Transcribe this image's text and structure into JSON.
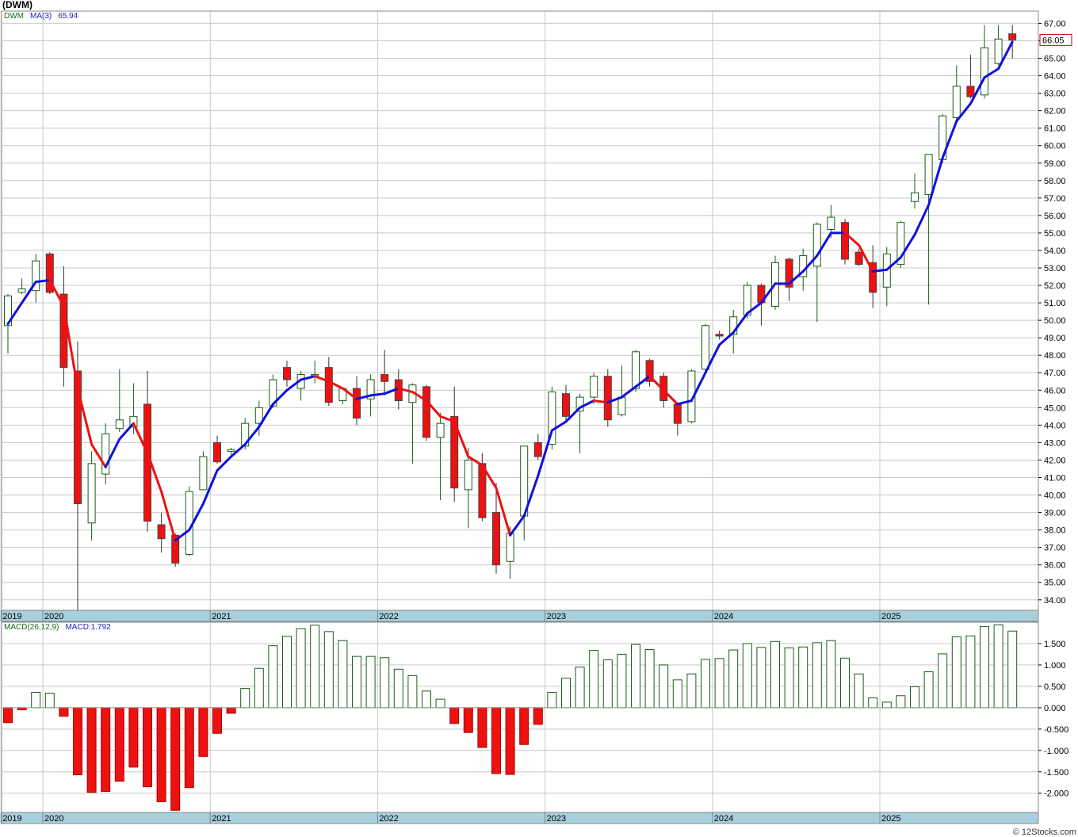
{
  "title": "(DWM)",
  "price_legend": {
    "symbol": "DWM",
    "indicator": "MA(3)",
    "value": "65.94"
  },
  "macd_legend": {
    "indicator": "MACD(26,12,9)",
    "value": "MACD:1.792"
  },
  "last_price_label": "66.05",
  "credit": "© 12Stocks.com",
  "colors": {
    "up_candle_fill": "#ffffff",
    "up_candle_stroke": "#1a5c1a",
    "down_candle": "#ee1111",
    "ma_rising": "#1010dd",
    "ma_falling": "#ee1111",
    "axis_band": "#a8d0dc",
    "grid": "#c8c8c8",
    "background": "#ffffff"
  },
  "chart_data": [
    {
      "type": "candlestick",
      "title": "(DWM)",
      "series_name": "DWM",
      "overlay": "MA(3)",
      "timeframe": "monthly",
      "ylim": [
        33.4,
        67.7
      ],
      "y_ticks": [
        34,
        35,
        36,
        37,
        38,
        39,
        40,
        41,
        42,
        43,
        44,
        45,
        46,
        47,
        48,
        49,
        50,
        51,
        52,
        53,
        54,
        55,
        56,
        57,
        58,
        59,
        60,
        61,
        62,
        63,
        64,
        65,
        66,
        67
      ],
      "x_labels": [
        "2019",
        "2020",
        "2021",
        "2022",
        "2023",
        "2024",
        "2025"
      ],
      "grid": true,
      "candles": [
        {
          "o": 49.7,
          "h": 51.5,
          "l": 48.1,
          "c": 51.4
        },
        {
          "o": 51.6,
          "h": 52.4,
          "l": 51.5,
          "c": 51.8
        },
        {
          "o": 51.7,
          "h": 53.8,
          "l": 51.0,
          "c": 53.4
        },
        {
          "o": 53.8,
          "h": 53.9,
          "l": 51.5,
          "c": 51.6
        },
        {
          "o": 51.5,
          "h": 53.1,
          "l": 46.2,
          "c": 47.3
        },
        {
          "o": 47.1,
          "h": 48.8,
          "l": 33.4,
          "c": 39.5
        },
        {
          "o": 38.4,
          "h": 42.5,
          "l": 37.4,
          "c": 41.8
        },
        {
          "o": 41.2,
          "h": 44.1,
          "l": 40.6,
          "c": 43.5
        },
        {
          "o": 43.8,
          "h": 47.2,
          "l": 43.6,
          "c": 44.3
        },
        {
          "o": 43.9,
          "h": 46.4,
          "l": 43.5,
          "c": 44.5
        },
        {
          "o": 45.2,
          "h": 47.1,
          "l": 37.9,
          "c": 38.5
        },
        {
          "o": 38.3,
          "h": 39.0,
          "l": 36.7,
          "c": 37.5
        },
        {
          "o": 37.7,
          "h": 37.8,
          "l": 35.9,
          "c": 36.1
        },
        {
          "o": 36.6,
          "h": 40.5,
          "l": 36.5,
          "c": 40.2
        },
        {
          "o": 40.3,
          "h": 42.5,
          "l": 40.3,
          "c": 42.2
        },
        {
          "o": 43.0,
          "h": 43.4,
          "l": 41.8,
          "c": 41.9
        },
        {
          "o": 42.5,
          "h": 42.7,
          "l": 42.3,
          "c": 42.6
        },
        {
          "o": 42.8,
          "h": 44.4,
          "l": 42.6,
          "c": 44.1
        },
        {
          "o": 44.1,
          "h": 45.4,
          "l": 43.4,
          "c": 45.0
        },
        {
          "o": 45.1,
          "h": 46.9,
          "l": 45.0,
          "c": 46.6
        },
        {
          "o": 47.3,
          "h": 47.7,
          "l": 46.2,
          "c": 46.6
        },
        {
          "o": 46.1,
          "h": 47.1,
          "l": 45.4,
          "c": 46.9
        },
        {
          "o": 46.9,
          "h": 47.7,
          "l": 46.4,
          "c": 46.9
        },
        {
          "o": 47.3,
          "h": 47.9,
          "l": 45.1,
          "c": 45.3
        },
        {
          "o": 45.4,
          "h": 46.1,
          "l": 45.2,
          "c": 46.1
        },
        {
          "o": 46.1,
          "h": 46.8,
          "l": 44.0,
          "c": 44.4
        },
        {
          "o": 45.5,
          "h": 46.9,
          "l": 44.5,
          "c": 46.6
        },
        {
          "o": 46.9,
          "h": 48.3,
          "l": 45.7,
          "c": 46.5
        },
        {
          "o": 46.6,
          "h": 47.2,
          "l": 44.9,
          "c": 45.4
        },
        {
          "o": 45.3,
          "h": 46.4,
          "l": 41.8,
          "c": 46.3
        },
        {
          "o": 46.2,
          "h": 46.3,
          "l": 43.1,
          "c": 43.3
        },
        {
          "o": 43.3,
          "h": 44.7,
          "l": 39.7,
          "c": 44.1
        },
        {
          "o": 44.5,
          "h": 46.2,
          "l": 39.6,
          "c": 40.4
        },
        {
          "o": 40.3,
          "h": 42.7,
          "l": 38.1,
          "c": 42.0
        },
        {
          "o": 41.8,
          "h": 42.4,
          "l": 38.5,
          "c": 38.7
        },
        {
          "o": 39.0,
          "h": 40.7,
          "l": 35.5,
          "c": 36.0
        },
        {
          "o": 36.2,
          "h": 38.2,
          "l": 35.2,
          "c": 37.8
        },
        {
          "o": 38.8,
          "h": 42.8,
          "l": 37.4,
          "c": 42.8
        },
        {
          "o": 43.0,
          "h": 43.5,
          "l": 42.0,
          "c": 42.2
        },
        {
          "o": 42.9,
          "h": 46.2,
          "l": 42.6,
          "c": 45.9
        },
        {
          "o": 45.8,
          "h": 46.3,
          "l": 44.2,
          "c": 44.5
        },
        {
          "o": 44.8,
          "h": 45.8,
          "l": 42.4,
          "c": 45.6
        },
        {
          "o": 45.6,
          "h": 47.0,
          "l": 45.2,
          "c": 46.8
        },
        {
          "o": 46.8,
          "h": 47.2,
          "l": 43.9,
          "c": 44.3
        },
        {
          "o": 44.6,
          "h": 47.4,
          "l": 44.5,
          "c": 45.6
        },
        {
          "o": 46.1,
          "h": 48.3,
          "l": 45.9,
          "c": 48.2
        },
        {
          "o": 47.7,
          "h": 47.8,
          "l": 46.2,
          "c": 46.5
        },
        {
          "o": 46.8,
          "h": 47.0,
          "l": 45.0,
          "c": 45.4
        },
        {
          "o": 45.2,
          "h": 45.3,
          "l": 43.4,
          "c": 44.1
        },
        {
          "o": 44.2,
          "h": 47.2,
          "l": 44.1,
          "c": 47.1
        },
        {
          "o": 47.2,
          "h": 49.8,
          "l": 47.1,
          "c": 49.7
        },
        {
          "o": 49.2,
          "h": 49.4,
          "l": 48.9,
          "c": 49.1
        },
        {
          "o": 49.2,
          "h": 50.6,
          "l": 48.1,
          "c": 50.2
        },
        {
          "o": 50.3,
          "h": 52.2,
          "l": 50.1,
          "c": 52.0
        },
        {
          "o": 52.0,
          "h": 52.1,
          "l": 49.7,
          "c": 51.0
        },
        {
          "o": 50.8,
          "h": 53.7,
          "l": 50.6,
          "c": 53.3
        },
        {
          "o": 53.5,
          "h": 53.6,
          "l": 51.1,
          "c": 51.9
        },
        {
          "o": 52.5,
          "h": 54.1,
          "l": 51.7,
          "c": 53.7
        },
        {
          "o": 53.1,
          "h": 55.6,
          "l": 49.9,
          "c": 55.5
        },
        {
          "o": 55.2,
          "h": 56.6,
          "l": 54.7,
          "c": 55.9
        },
        {
          "o": 55.6,
          "h": 55.8,
          "l": 53.2,
          "c": 53.5
        },
        {
          "o": 53.9,
          "h": 54.1,
          "l": 53.1,
          "c": 53.2
        },
        {
          "o": 53.3,
          "h": 54.3,
          "l": 50.7,
          "c": 51.6
        },
        {
          "o": 51.9,
          "h": 54.2,
          "l": 50.8,
          "c": 53.8
        },
        {
          "o": 53.2,
          "h": 55.7,
          "l": 53.0,
          "c": 55.6
        },
        {
          "o": 56.8,
          "h": 58.4,
          "l": 56.4,
          "c": 57.3
        },
        {
          "o": 57.2,
          "h": 59.5,
          "l": 50.9,
          "c": 59.5
        },
        {
          "o": 59.2,
          "h": 61.8,
          "l": 59.0,
          "c": 61.7
        },
        {
          "o": 61.6,
          "h": 64.6,
          "l": 61.3,
          "c": 63.4
        },
        {
          "o": 63.4,
          "h": 65.2,
          "l": 62.7,
          "c": 62.8
        },
        {
          "o": 62.9,
          "h": 66.9,
          "l": 62.7,
          "c": 65.6
        },
        {
          "o": 64.7,
          "h": 66.9,
          "l": 64.6,
          "c": 66.1
        },
        {
          "o": 66.4,
          "h": 66.9,
          "l": 65.0,
          "c": 66.05
        }
      ],
      "ma": [
        49.8,
        51.0,
        52.2,
        52.3,
        50.8,
        46.1,
        42.9,
        41.6,
        43.2,
        44.1,
        42.4,
        40.2,
        37.4,
        38.0,
        39.5,
        41.4,
        42.2,
        42.9,
        43.9,
        45.2,
        46.0,
        46.6,
        46.8,
        46.5,
        46.1,
        45.5,
        45.7,
        45.8,
        46.1,
        45.9,
        45.4,
        44.5,
        44.2,
        42.2,
        41.7,
        40.4,
        37.7,
        38.8,
        41.1,
        43.7,
        44.2,
        45.0,
        45.4,
        45.3,
        45.6,
        46.2,
        46.8,
        46.0,
        45.2,
        45.4,
        47.0,
        48.6,
        49.3,
        50.4,
        51.0,
        52.1,
        52.1,
        52.8,
        53.7,
        55.0,
        55.0,
        54.3,
        52.8,
        52.9,
        53.6,
        54.9,
        56.6,
        59.3,
        61.4,
        62.4,
        63.9,
        64.4,
        65.94
      ]
    },
    {
      "type": "bar",
      "title": "MACD(26,12,9)",
      "series_name": "MACD:1.792",
      "ylim": [
        -2.45,
        2.0
      ],
      "y_ticks": [
        -2.0,
        -1.5,
        -1.0,
        -0.5,
        0.0,
        0.5,
        1.0,
        1.5
      ],
      "y_tick_labels": [
        "-2.000",
        "-1.500",
        "-1.000",
        "-0.500",
        "0.000",
        "0.500",
        "1.000",
        "1.500"
      ],
      "x_labels": [
        "2019",
        "2020",
        "2021",
        "2022",
        "2023",
        "2024",
        "2025"
      ],
      "grid": true,
      "values": [
        -0.35,
        -0.05,
        0.36,
        0.34,
        -0.2,
        -1.57,
        -1.98,
        -1.96,
        -1.72,
        -1.39,
        -1.85,
        -2.2,
        -2.4,
        -1.87,
        -1.14,
        -0.6,
        -0.13,
        0.45,
        0.92,
        1.45,
        1.67,
        1.85,
        1.93,
        1.78,
        1.57,
        1.2,
        1.2,
        1.17,
        0.9,
        0.75,
        0.39,
        0.2,
        -0.37,
        -0.58,
        -0.93,
        -1.54,
        -1.56,
        -0.86,
        -0.39,
        0.36,
        0.69,
        0.95,
        1.34,
        1.12,
        1.25,
        1.48,
        1.36,
        1.0,
        0.65,
        0.79,
        1.13,
        1.15,
        1.35,
        1.5,
        1.41,
        1.55,
        1.4,
        1.42,
        1.52,
        1.57,
        1.16,
        0.79,
        0.23,
        0.13,
        0.28,
        0.49,
        0.84,
        1.26,
        1.66,
        1.68,
        1.9,
        1.94,
        1.792
      ]
    }
  ]
}
